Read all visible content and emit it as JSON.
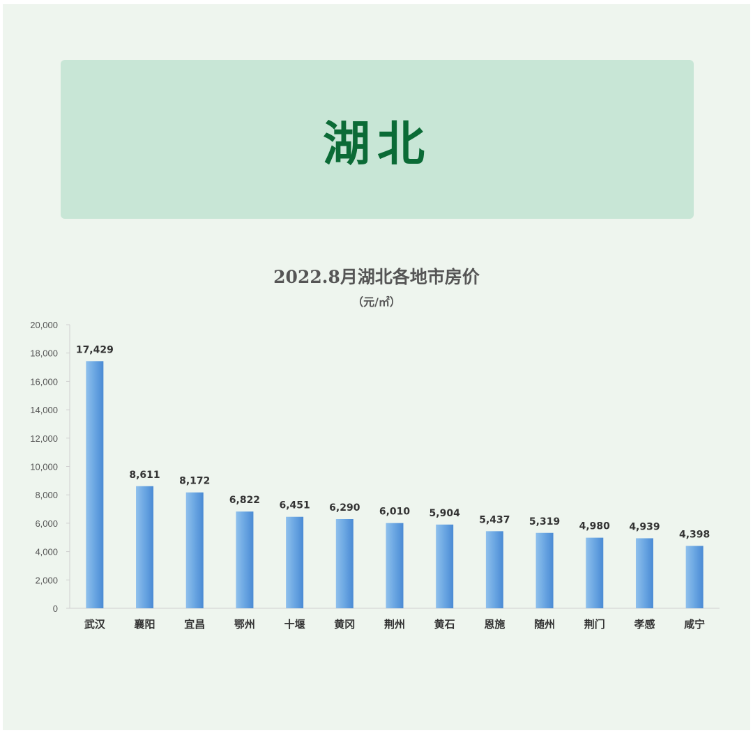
{
  "banner": {
    "title": "湖北"
  },
  "chart_data": {
    "type": "bar",
    "title": "2022.8月湖北各地市房价",
    "subtitle": "（元/㎡）",
    "xlabel": "",
    "ylabel": "",
    "ylim": [
      0,
      20000
    ],
    "yticks": [
      "0",
      "2,000",
      "4,000",
      "6,000",
      "8,000",
      "10,000",
      "12,000",
      "14,000",
      "16,000",
      "18,000",
      "20,000"
    ],
    "grid": false,
    "categories": [
      "武汉",
      "襄阳",
      "宜昌",
      "鄂州",
      "十堰",
      "黄冈",
      "荆州",
      "黄石",
      "恩施",
      "随州",
      "荆门",
      "孝感",
      "咸宁"
    ],
    "values": [
      17429,
      8611,
      8172,
      6822,
      6451,
      6290,
      6010,
      5904,
      5437,
      5319,
      4980,
      4939,
      4398
    ],
    "value_labels": [
      "17,429",
      "8,611",
      "8,172",
      "6,822",
      "6,451",
      "6,290",
      "6,010",
      "5,904",
      "5,437",
      "5,319",
      "4,980",
      "4,939",
      "4,398"
    ],
    "colors": {
      "bar_light": "#8fc0ec",
      "bar_dark": "#4a8ad4",
      "text": "#333333",
      "axis": "#d0d0d0"
    }
  }
}
